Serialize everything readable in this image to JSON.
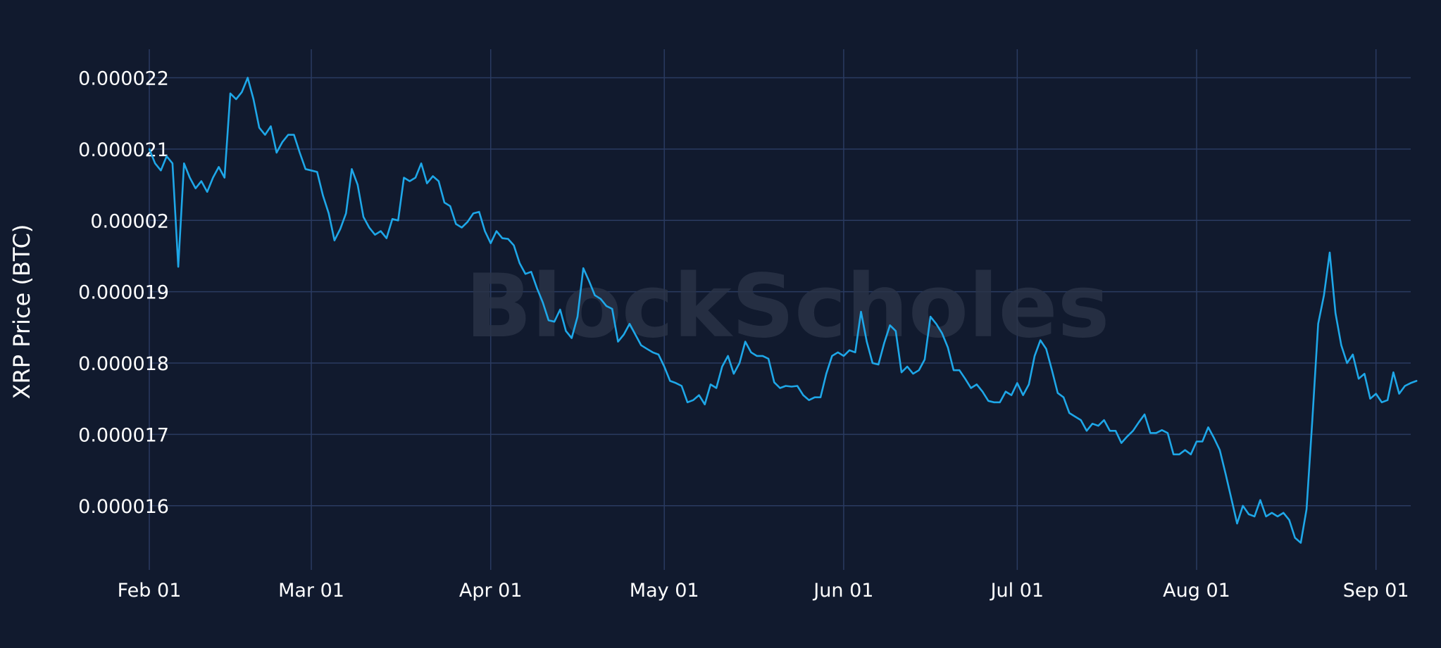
{
  "watermark": "BlockScholes",
  "colors": {
    "background": "#111a2e",
    "grid": "#2a3b61",
    "line": "#1ea7e8",
    "text": "#ffffff",
    "watermark": "#2a3447"
  },
  "chart_data": {
    "type": "line",
    "title": "",
    "xlabel": "",
    "ylabel": "XRP Price (BTC)",
    "x_ticks": [
      {
        "label": "Feb 01",
        "date": "2022-02-01"
      },
      {
        "label": "Mar 01",
        "date": "2022-03-01"
      },
      {
        "label": "Apr 01",
        "date": "2022-04-01"
      },
      {
        "label": "May 01",
        "date": "2022-05-01"
      },
      {
        "label": "Jun 01",
        "date": "2022-06-01"
      },
      {
        "label": "Jul 01",
        "date": "2022-07-01"
      },
      {
        "label": "Aug 01",
        "date": "2022-08-01"
      },
      {
        "label": "Sep 01",
        "date": "2022-09-01"
      }
    ],
    "y_ticks": [
      {
        "label": "0.000016",
        "value": 1.6e-05
      },
      {
        "label": "0.000017",
        "value": 1.7e-05
      },
      {
        "label": "0.000018",
        "value": 1.8e-05
      },
      {
        "label": "0.000019",
        "value": 1.9e-05
      },
      {
        "label": "0.00002",
        "value": 2e-05
      },
      {
        "label": "0.000021",
        "value": 2.1e-05
      },
      {
        "label": "0.000022",
        "value": 2.2e-05
      }
    ],
    "xlim": [
      "2022-02-01",
      "2022-09-07"
    ],
    "ylim": [
      1.51e-05,
      2.24e-05
    ],
    "grid": true,
    "legend": "none",
    "series": [
      {
        "x_start": "2022-02-01",
        "x_step_days": 1,
        "values": [
          2.1e-05,
          2.08e-05,
          2.07e-05,
          2.09e-05,
          2.08e-05,
          1.935e-05,
          2.08e-05,
          2.06e-05,
          2.045e-05,
          2.055e-05,
          2.04e-05,
          2.06e-05,
          2.075e-05,
          2.06e-05,
          2.178e-05,
          2.17e-05,
          2.18e-05,
          2.2e-05,
          2.17e-05,
          2.13e-05,
          2.12e-05,
          2.132e-05,
          2.095e-05,
          2.11e-05,
          2.12e-05,
          2.12e-05,
          2.095e-05,
          2.072e-05,
          2.07e-05,
          2.068e-05,
          2.035e-05,
          2.01e-05,
          1.972e-05,
          1.988e-05,
          2.01e-05,
          2.072e-05,
          2.05e-05,
          2.005e-05,
          1.99e-05,
          1.98e-05,
          1.985e-05,
          1.975e-05,
          2.002e-05,
          2e-05,
          2.06e-05,
          2.055e-05,
          2.06e-05,
          2.08e-05,
          2.052e-05,
          2.062e-05,
          2.055e-05,
          2.025e-05,
          2.02e-05,
          1.995e-05,
          1.99e-05,
          1.998e-05,
          2.01e-05,
          2.012e-05,
          1.985e-05,
          1.968e-05,
          1.985e-05,
          1.975e-05,
          1.974e-05,
          1.965e-05,
          1.94e-05,
          1.925e-05,
          1.928e-05,
          1.905e-05,
          1.885e-05,
          1.86e-05,
          1.858e-05,
          1.875e-05,
          1.845e-05,
          1.835e-05,
          1.865e-05,
          1.933e-05,
          1.915e-05,
          1.895e-05,
          1.89e-05,
          1.88e-05,
          1.876e-05,
          1.83e-05,
          1.84e-05,
          1.855e-05,
          1.84e-05,
          1.825e-05,
          1.82e-05,
          1.815e-05,
          1.812e-05,
          1.795e-05,
          1.775e-05,
          1.772e-05,
          1.768e-05,
          1.745e-05,
          1.748e-05,
          1.755e-05,
          1.742e-05,
          1.77e-05,
          1.765e-05,
          1.795e-05,
          1.81e-05,
          1.785e-05,
          1.8e-05,
          1.83e-05,
          1.815e-05,
          1.81e-05,
          1.81e-05,
          1.806e-05,
          1.773e-05,
          1.765e-05,
          1.768e-05,
          1.767e-05,
          1.768e-05,
          1.755e-05,
          1.748e-05,
          1.752e-05,
          1.752e-05,
          1.785e-05,
          1.81e-05,
          1.815e-05,
          1.81e-05,
          1.818e-05,
          1.815e-05,
          1.872e-05,
          1.83e-05,
          1.8e-05,
          1.798e-05,
          1.828e-05,
          1.853e-05,
          1.845e-05,
          1.787e-05,
          1.795e-05,
          1.785e-05,
          1.79e-05,
          1.805e-05,
          1.865e-05,
          1.855e-05,
          1.842e-05,
          1.822e-05,
          1.79e-05,
          1.79e-05,
          1.778e-05,
          1.765e-05,
          1.77e-05,
          1.76e-05,
          1.747e-05,
          1.745e-05,
          1.745e-05,
          1.76e-05,
          1.755e-05,
          1.772e-05,
          1.755e-05,
          1.77e-05,
          1.81e-05,
          1.832e-05,
          1.82e-05,
          1.79e-05,
          1.758e-05,
          1.752e-05,
          1.73e-05,
          1.725e-05,
          1.72e-05,
          1.705e-05,
          1.715e-05,
          1.712e-05,
          1.72e-05,
          1.705e-05,
          1.705e-05,
          1.688e-05,
          1.697e-05,
          1.705e-05,
          1.717e-05,
          1.728e-05,
          1.702e-05,
          1.702e-05,
          1.706e-05,
          1.702e-05,
          1.672e-05,
          1.672e-05,
          1.678e-05,
          1.672e-05,
          1.69e-05,
          1.69e-05,
          1.71e-05,
          1.695e-05,
          1.678e-05,
          1.645e-05,
          1.61e-05,
          1.575e-05,
          1.6e-05,
          1.588e-05,
          1.585e-05,
          1.608e-05,
          1.585e-05,
          1.59e-05,
          1.585e-05,
          1.59e-05,
          1.58e-05,
          1.555e-05,
          1.548e-05,
          1.595e-05,
          1.72e-05,
          1.855e-05,
          1.895e-05,
          1.955e-05,
          1.87e-05,
          1.825e-05,
          1.8e-05,
          1.812e-05,
          1.778e-05,
          1.785e-05,
          1.75e-05,
          1.757e-05,
          1.745e-05,
          1.748e-05,
          1.787e-05,
          1.757e-05,
          1.768e-05,
          1.772e-05,
          1.775e-05
        ]
      }
    ]
  }
}
